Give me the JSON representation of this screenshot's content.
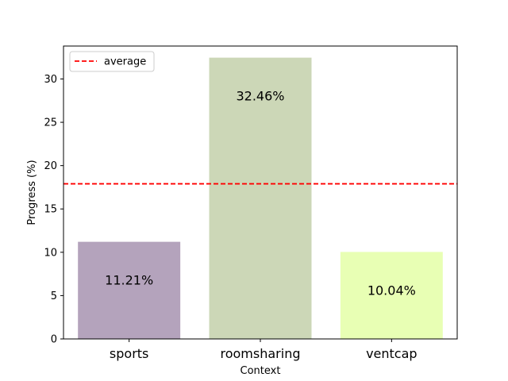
{
  "chart_data": {
    "type": "bar",
    "categories": [
      "sports",
      "roomsharing",
      "ventcap"
    ],
    "values": [
      11.21,
      32.46,
      10.04
    ],
    "value_labels": [
      "11.21%",
      "32.46%",
      "10.04%"
    ],
    "bar_colors": [
      "#b4a3bc",
      "#ccd7b7",
      "#e8ffb4"
    ],
    "average": 17.9,
    "average_color": "#ff0000",
    "xlabel": "Context",
    "ylabel": "Progress (%)",
    "ylim": [
      0,
      33.8
    ],
    "yticks": [
      0,
      5,
      10,
      15,
      20,
      25,
      30
    ],
    "legend": {
      "label": "average",
      "placement": "top-left"
    },
    "grid": false
  }
}
